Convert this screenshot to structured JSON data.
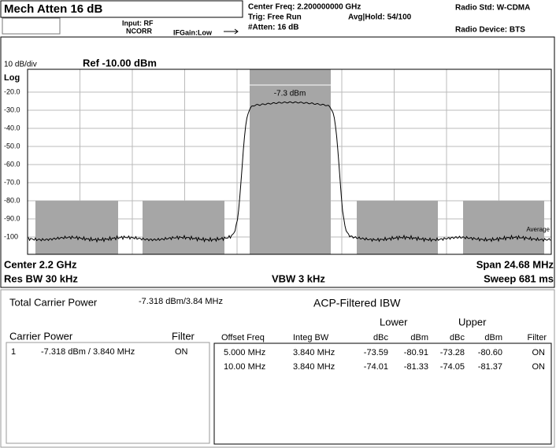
{
  "header": {
    "mech_atten": "Mech Atten  16 dB",
    "input": "Input: RF",
    "ncorr": "NCORR",
    "ifgain": "IFGain:Low",
    "center_freq": "Center Freq: 2.200000000 GHz",
    "trig": "Trig: Free Run",
    "atten": "#Atten: 16 dB",
    "avg_hold": "Avg|Hold: 54/100",
    "radio_std": "Radio Std: W-CDMA",
    "radio_device": "Radio Device: BTS"
  },
  "graph": {
    "scale": "10 dB/div",
    "ref": "Ref -10.00 dBm",
    "log": "Log",
    "yticks": [
      "-20.0",
      "-30.0",
      "-40.0",
      "-50.0",
      "-60.0",
      "-70.0",
      "-80.0",
      "-90.0",
      "-100"
    ],
    "carrier_label": "-7.3 dBm",
    "trace_label": "Average"
  },
  "footer": {
    "center": "Center  2.2 GHz",
    "res_bw": "Res BW  30 kHz",
    "vbw": "VBW  3 kHz",
    "span": "Span 24.68 MHz",
    "sweep": "Sweep  681 ms"
  },
  "results": {
    "total_label": "Total Carrier Power",
    "total_value": "-7.318 dBm/3.84 MHz",
    "acp_title": "ACP-Filtered IBW",
    "carrier": {
      "title": "Carrier Power",
      "filter": "Filter",
      "rows": [
        [
          "1",
          "-7.318 dBm /  3.840 MHz",
          "ON"
        ]
      ]
    },
    "acp": {
      "lower": "Lower",
      "upper": "Upper",
      "columns": [
        "Offset Freq",
        "Integ BW",
        "dBc",
        "dBm",
        "dBc",
        "dBm",
        "Filter"
      ],
      "rows": [
        [
          "5.000 MHz",
          "3.840 MHz",
          "-73.59",
          "-80.91",
          "-73.28",
          "-80.60",
          "ON"
        ],
        [
          "10.00 MHz",
          "3.840 MHz",
          "-74.01",
          "-81.33",
          "-74.05",
          "-81.37",
          "ON"
        ]
      ]
    }
  }
}
